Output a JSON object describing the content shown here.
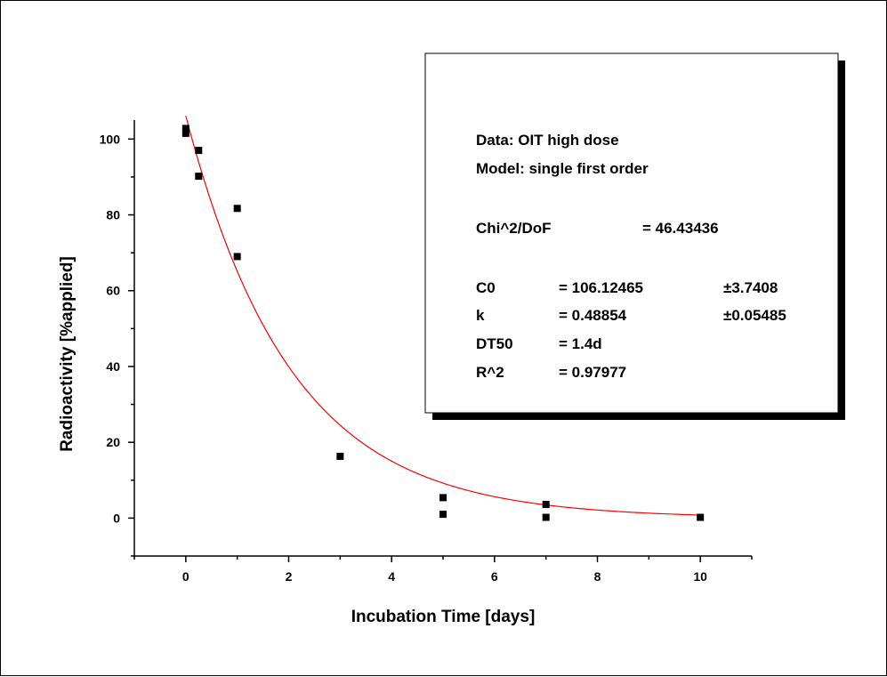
{
  "chart_data": {
    "type": "scatter",
    "xlabel": "Incubation Time [days]",
    "ylabel": "Radioactivity [%applied]",
    "xlim": [
      -1,
      11
    ],
    "ylim": [
      -10,
      105
    ],
    "x_ticks": [
      0,
      2,
      4,
      6,
      8,
      10
    ],
    "y_ticks": [
      0,
      20,
      40,
      60,
      80,
      100
    ],
    "grid": false,
    "points": [
      {
        "x": 0,
        "y": 102.8
      },
      {
        "x": 0,
        "y": 101.5
      },
      {
        "x": 0.25,
        "y": 97
      },
      {
        "x": 0.25,
        "y": 90.2
      },
      {
        "x": 1,
        "y": 81.7
      },
      {
        "x": 1,
        "y": 69
      },
      {
        "x": 3,
        "y": 16.3
      },
      {
        "x": 5,
        "y": 5.4
      },
      {
        "x": 5,
        "y": 1
      },
      {
        "x": 7,
        "y": 3.6
      },
      {
        "x": 7,
        "y": 0.2
      },
      {
        "x": 10,
        "y": 0.2
      }
    ],
    "fit": {
      "model": "single first order",
      "C0": 106.12465,
      "k": 0.48854,
      "x_range": [
        0,
        10
      ],
      "color": "#ff0000"
    },
    "marker_color": "#000000",
    "annotation": {
      "data_line": "Data: OIT high dose",
      "model_line": "Model: single first order",
      "chi_label": "Chi^2/DoF",
      "chi_value": "= 46.43436",
      "params": [
        {
          "name": "C0",
          "value": "= 106.12465",
          "error": "±3.7408"
        },
        {
          "name": "k",
          "value": "= 0.48854",
          "error": "±0.05485"
        },
        {
          "name": "DT50",
          "value": "= 1.4d",
          "error": ""
        },
        {
          "name": "R^2",
          "value": "= 0.97977",
          "error": ""
        }
      ]
    }
  }
}
